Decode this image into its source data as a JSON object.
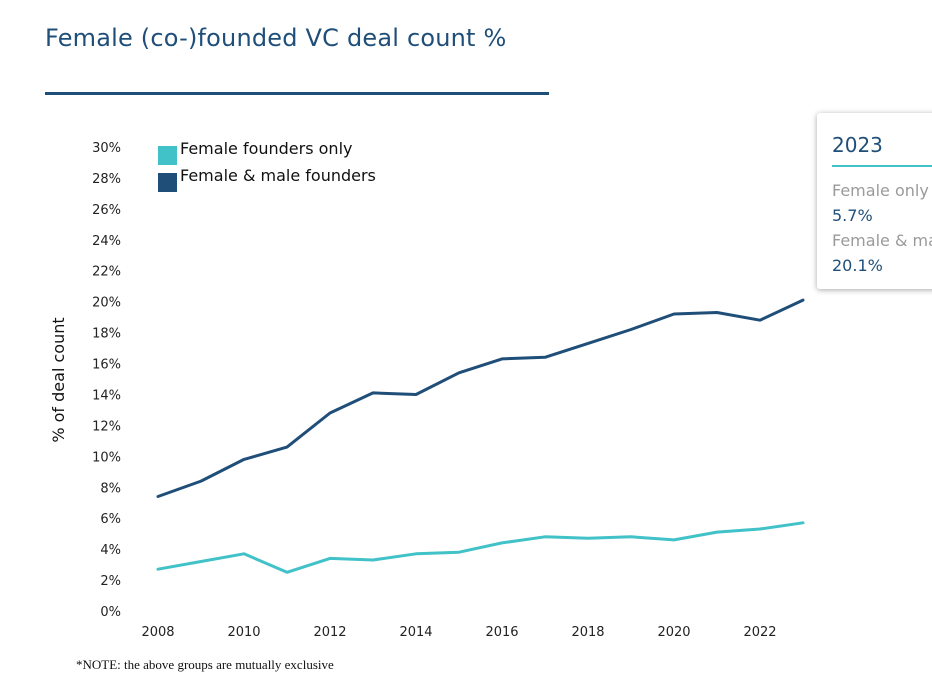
{
  "title": "Female (co-)founded VC deal count %",
  "note": "*NOTE: the above groups are mutually exclusive",
  "tooltip": {
    "year": "2023",
    "items": [
      {
        "label": "Female only",
        "value": "5.7%"
      },
      {
        "label": "Female & male founders",
        "value": "20.1%"
      }
    ]
  },
  "colors": {
    "title": "#1f4e79",
    "female_only": "#41c1c8",
    "female_male": "#1f4e79"
  },
  "chart_data": {
    "type": "line",
    "ylabel": "% of deal count",
    "ylim": [
      0,
      30
    ],
    "yticks": [
      "0%",
      "2%",
      "4%",
      "6%",
      "8%",
      "10%",
      "12%",
      "14%",
      "16%",
      "18%",
      "20%",
      "22%",
      "24%",
      "26%",
      "28%",
      "30%"
    ],
    "xlim": [
      2008,
      2023
    ],
    "xticks": [
      "2008",
      "2010",
      "2012",
      "2014",
      "2016",
      "2018",
      "2020",
      "2022"
    ],
    "x": [
      2008,
      2009,
      2010,
      2011,
      2012,
      2013,
      2014,
      2015,
      2016,
      2017,
      2018,
      2019,
      2020,
      2021,
      2022,
      2023
    ],
    "legend_position": "top-left",
    "grid": false,
    "series": [
      {
        "name": "Female founders only",
        "color": "#41c1c8",
        "values": [
          2.7,
          3.2,
          3.7,
          2.5,
          3.4,
          3.3,
          3.7,
          3.8,
          4.4,
          4.8,
          4.7,
          4.8,
          4.6,
          5.1,
          5.3,
          5.7
        ]
      },
      {
        "name": "Female & male founders",
        "color": "#1f4e79",
        "values": [
          7.4,
          8.4,
          9.8,
          10.6,
          12.8,
          14.1,
          14.0,
          15.4,
          16.3,
          16.4,
          17.3,
          18.2,
          19.2,
          19.3,
          18.8,
          20.1
        ]
      }
    ]
  }
}
